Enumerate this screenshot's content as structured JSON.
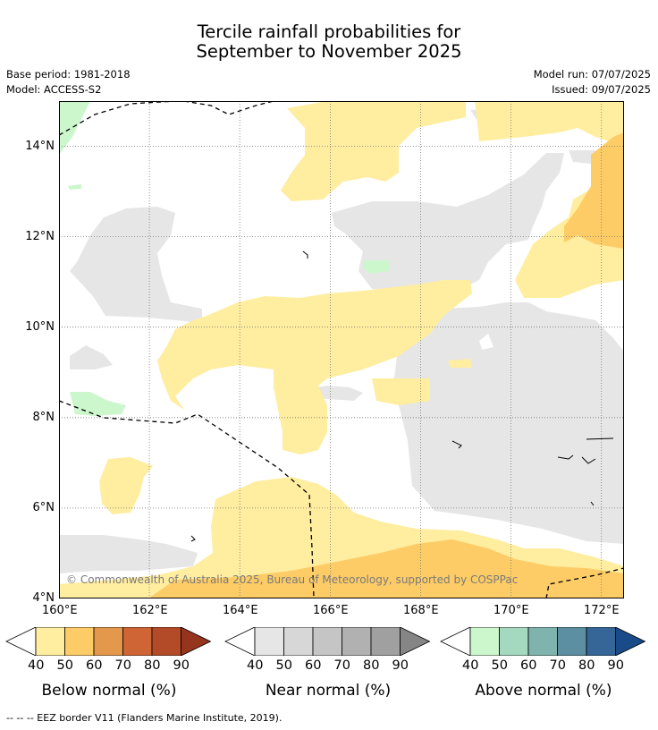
{
  "title_line1": "Tercile rainfall probabilities for",
  "title_line2": "September to November 2025",
  "base_period": "Base period: 1981-2018",
  "model": "Model: ACCESS-S2",
  "model_run": "Model run: 07/07/2025",
  "issued": "Issued: 09/07/2025",
  "map": {
    "lon_range": [
      160,
      172.5
    ],
    "lat_range": [
      4,
      15
    ],
    "lat_labels": [
      "14°N",
      "12°N",
      "10°N",
      "8°N",
      "6°N",
      "4°N"
    ],
    "lon_labels": [
      "160°E",
      "162°E",
      "164°E",
      "166°E",
      "168°E",
      "170°E",
      "172°E"
    ],
    "gridlines": true,
    "copyright": "© Commonwealth of Australia 2025, Bureau of Meteorology, supported by COSPPac"
  },
  "legends": [
    {
      "caption": "Below normal (%)",
      "ticks": [
        "40",
        "50",
        "60",
        "70",
        "80",
        "90"
      ],
      "colors": [
        "#ffeda0",
        "#fdcc66",
        "#e3984c",
        "#cf6535",
        "#b34b28",
        "#96341d"
      ]
    },
    {
      "caption": "Near normal (%)",
      "ticks": [
        "40",
        "50",
        "60",
        "70",
        "80",
        "90"
      ],
      "colors": [
        "#e6e6e6",
        "#d7d7d7",
        "#c5c5c5",
        "#b1b1b1",
        "#a0a0a0",
        "#858585"
      ]
    },
    {
      "caption": "Above normal (%)",
      "ticks": [
        "40",
        "50",
        "60",
        "70",
        "80",
        "90"
      ],
      "colors": [
        "#ccf7cc",
        "#a4d8bf",
        "#7fb3ae",
        "#5b8fa1",
        "#356697",
        "#184b87"
      ]
    }
  ],
  "footnote": "-- -- -- EEZ border V11 (Flanders Marine Institute, 2019).",
  "colors": {
    "below_40_50": "#ffeda0",
    "below_50_60": "#fdcc66",
    "near_40_50": "#e6e6e6",
    "above_40_50": "#ccf7cc"
  }
}
